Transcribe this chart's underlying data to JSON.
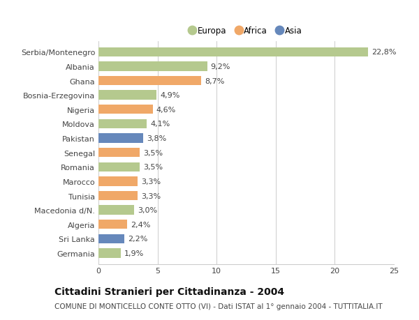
{
  "categories": [
    "Serbia/Montenegro",
    "Albania",
    "Ghana",
    "Bosnia-Erzegovina",
    "Nigeria",
    "Moldova",
    "Pakistan",
    "Senegal",
    "Romania",
    "Marocco",
    "Tunisia",
    "Macedonia d/N.",
    "Algeria",
    "Sri Lanka",
    "Germania"
  ],
  "values": [
    22.8,
    9.2,
    8.7,
    4.9,
    4.6,
    4.1,
    3.8,
    3.5,
    3.5,
    3.3,
    3.3,
    3.0,
    2.4,
    2.2,
    1.9
  ],
  "continents": [
    "Europa",
    "Europa",
    "Africa",
    "Europa",
    "Africa",
    "Europa",
    "Asia",
    "Africa",
    "Europa",
    "Africa",
    "Africa",
    "Europa",
    "Africa",
    "Asia",
    "Europa"
  ],
  "colors": {
    "Europa": "#b5c98e",
    "Africa": "#f0a868",
    "Asia": "#6688bb"
  },
  "legend_labels": [
    "Europa",
    "Africa",
    "Asia"
  ],
  "legend_colors": [
    "#b5c98e",
    "#f0a868",
    "#6688bb"
  ],
  "title": "Cittadini Stranieri per Cittadinanza - 2004",
  "subtitle": "COMUNE DI MONTICELLO CONTE OTTO (VI) - Dati ISTAT al 1° gennaio 2004 - TUTTITALIA.IT",
  "xlim": [
    0,
    25
  ],
  "xticks": [
    0,
    5,
    10,
    15,
    20,
    25
  ],
  "background_color": "#ffffff",
  "grid_color": "#cccccc",
  "bar_height": 0.65,
  "label_fontsize": 8,
  "title_fontsize": 10,
  "subtitle_fontsize": 7.5,
  "tick_fontsize": 8
}
